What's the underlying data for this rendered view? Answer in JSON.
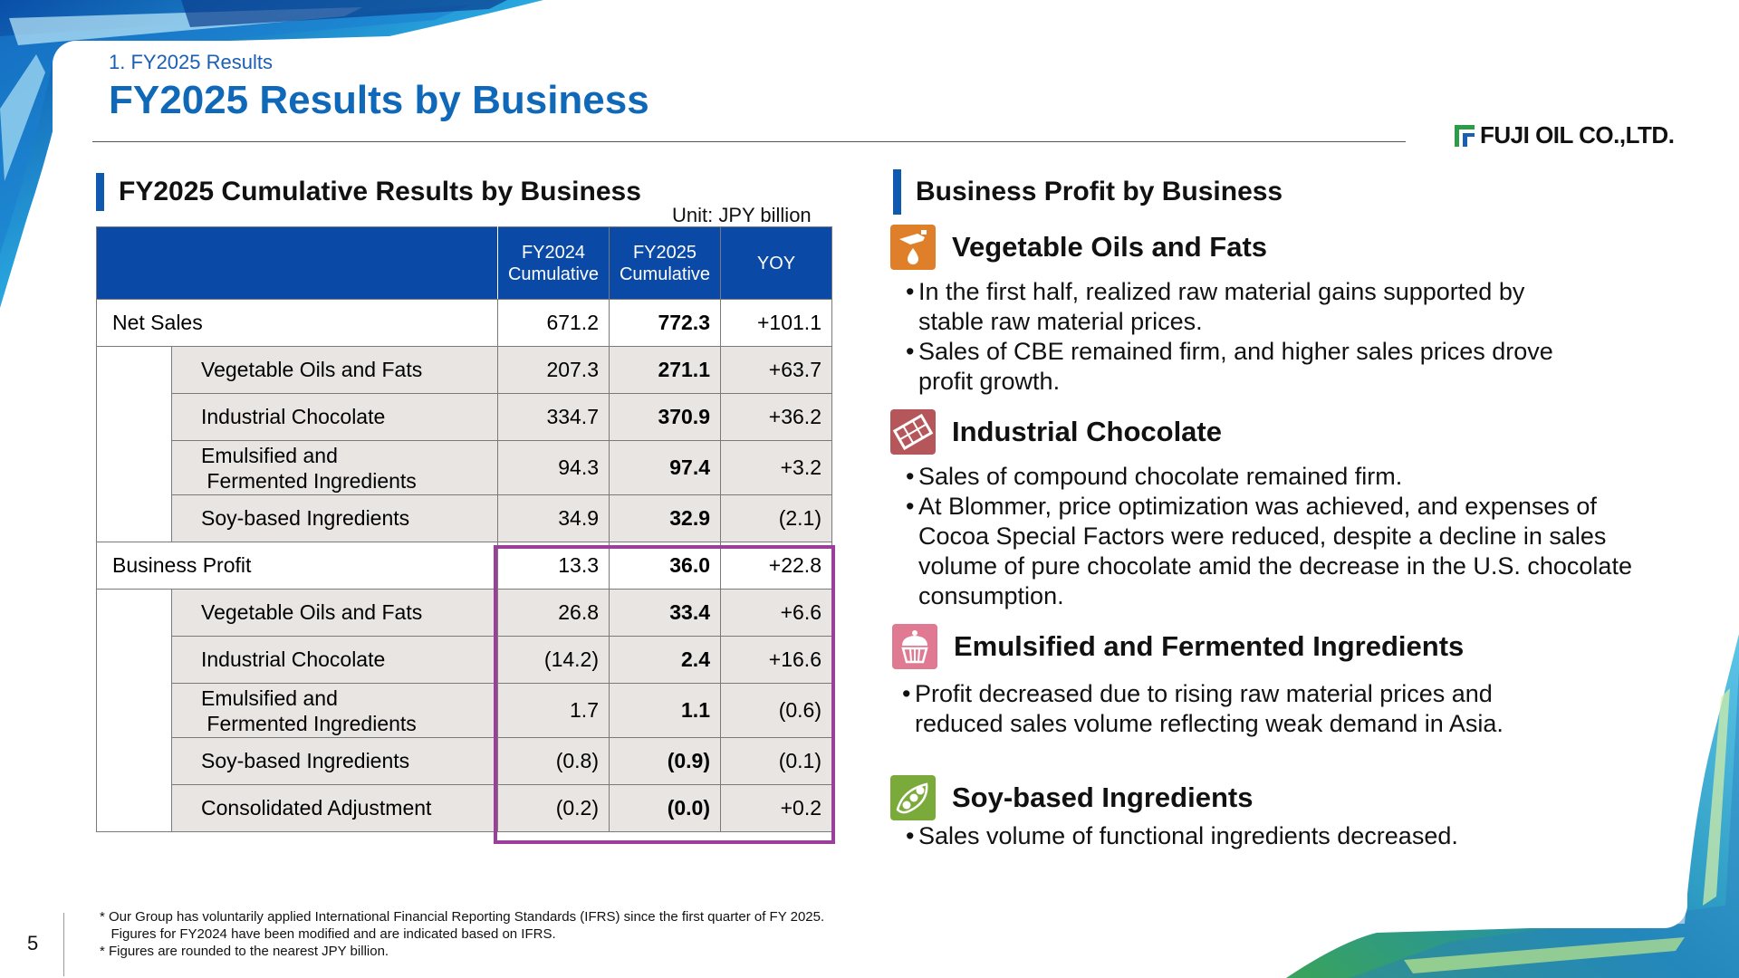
{
  "header": {
    "section_label": "1. FY2025 Results",
    "title": "FY2025 Results by Business",
    "logo_text": "FUJI OIL CO.,LTD."
  },
  "left": {
    "heading": "FY2025 Cumulative Results by Business",
    "unit": "Unit: JPY billion",
    "table": {
      "columns": [
        "FY2024\nCumulative",
        "FY2025\nCumulative",
        "YOY"
      ],
      "col1_line1": "FY2024",
      "col1_line2": "Cumulative",
      "col2_line1": "FY2025",
      "col2_line2": "Cumulative",
      "col3": "YOY",
      "rows": [
        {
          "label": "Net Sales",
          "fy2024": "671.2",
          "fy2025": "772.3",
          "yoy": "+101.1"
        },
        {
          "label": "Vegetable Oils and Fats",
          "fy2024": "207.3",
          "fy2025": "271.1",
          "yoy": "+63.7"
        },
        {
          "label": "Industrial Chocolate",
          "fy2024": "334.7",
          "fy2025": "370.9",
          "yoy": "+36.2"
        },
        {
          "label_l1": "Emulsified and",
          "label_l2": " Fermented Ingredients",
          "fy2024": "94.3",
          "fy2025": "97.4",
          "yoy": "+3.2"
        },
        {
          "label": "Soy-based Ingredients",
          "fy2024": "34.9",
          "fy2025": "32.9",
          "yoy": "(2.1)"
        },
        {
          "label": "Business Profit",
          "fy2024": "13.3",
          "fy2025": "36.0",
          "yoy": "+22.8"
        },
        {
          "label": "Vegetable Oils and Fats",
          "fy2024": "26.8",
          "fy2025": "33.4",
          "yoy": "+6.6"
        },
        {
          "label": "Industrial Chocolate",
          "fy2024": "(14.2)",
          "fy2025": "2.4",
          "yoy": "+16.6"
        },
        {
          "label_l1": "Emulsified and",
          "label_l2": " Fermented Ingredients",
          "fy2024": "1.7",
          "fy2025": "1.1",
          "yoy": "(0.6)"
        },
        {
          "label": "Soy-based Ingredients",
          "fy2024": "(0.8)",
          "fy2025": "(0.9)",
          "yoy": "(0.1)"
        },
        {
          "label": "Consolidated Adjustment",
          "fy2024": "(0.2)",
          "fy2025": "(0.0)",
          "yoy": "+0.2"
        }
      ]
    }
  },
  "right": {
    "heading": "Business Profit by Business",
    "segments": [
      {
        "title": "Vegetable Oils and Fats",
        "icon": "oil-drop-icon",
        "color": "#e07f2a",
        "bullets": [
          [
            "In the first half, realized raw material gains supported by",
            "stable raw material prices."
          ],
          [
            "Sales of CBE remained firm, and higher sales prices drove",
            "profit growth."
          ]
        ]
      },
      {
        "title": "Industrial Chocolate",
        "icon": "chocolate-bar-icon",
        "color": "#b5565a",
        "bullets": [
          [
            "Sales of compound chocolate remained firm."
          ],
          [
            "At Blommer, price optimization was achieved, and expenses of",
            "Cocoa Special Factors were reduced, despite a decline in sales",
            "volume of pure chocolate amid the decrease in the U.S. chocolate",
            "consumption."
          ]
        ]
      },
      {
        "title": "Emulsified and Fermented Ingredients",
        "icon": "cupcake-icon",
        "color": "#e07a92",
        "bullets": [
          [
            "Profit decreased due to rising raw material prices and",
            "reduced sales volume reflecting weak demand in Asia."
          ]
        ]
      },
      {
        "title": "Soy-based Ingredients",
        "icon": "soybean-icon",
        "color": "#7aab3a",
        "bullets": [
          [
            "Sales volume of functional ingredients decreased."
          ]
        ]
      }
    ]
  },
  "footnotes": [
    "* Our Group has voluntarily applied International Financial Reporting Standards (IFRS) since the first quarter of FY 2025.",
    "   Figures for FY2024 have been modified and are indicated based on IFRS.",
    "* Figures are rounded to the nearest JPY billion."
  ],
  "page_number": "5",
  "colors": {
    "title_blue": "#1068b8",
    "table_header": "#0a49a5",
    "highlight": "#9c3f9b"
  }
}
